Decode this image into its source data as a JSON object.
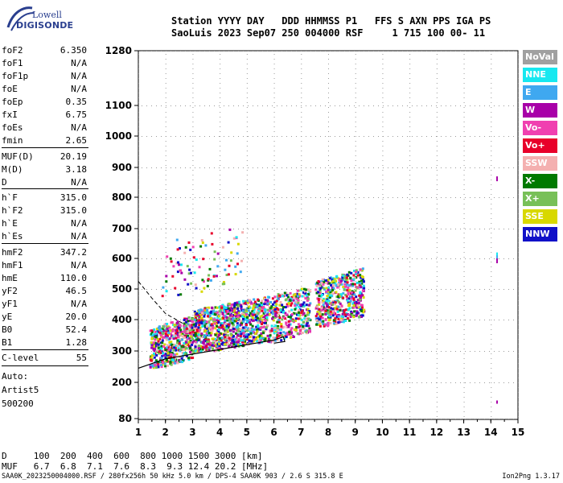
{
  "header": {
    "labels_line": "Station YYYY DAY   DDD HHMMSS P1   FFS S AXN PPS IGA PS",
    "values_line": "SaoLuis 2023 Sep07 250 004000 RSF     1 715 100 00- 11"
  },
  "logo": {
    "lowell": "Lowell",
    "digisonde": "DIGISONDE"
  },
  "params": [
    {
      "name": "foF2",
      "value": "6.350"
    },
    {
      "name": "foF1",
      "value": "N/A"
    },
    {
      "name": "foF1p",
      "value": "N/A"
    },
    {
      "name": "foE",
      "value": "N/A"
    },
    {
      "name": "foEp",
      "value": "0.35"
    },
    {
      "name": "fxI",
      "value": "6.75"
    },
    {
      "name": "foEs",
      "value": "N/A"
    },
    {
      "name": "fmin",
      "value": "2.65"
    },
    {
      "name": "MUF(D)",
      "value": "20.19"
    },
    {
      "name": "M(D)",
      "value": "3.18"
    },
    {
      "name": "D",
      "value": "N/A"
    },
    {
      "name": "h`F",
      "value": "315.0"
    },
    {
      "name": "h`F2",
      "value": "315.0"
    },
    {
      "name": "h`E",
      "value": "N/A"
    },
    {
      "name": "h`Es",
      "value": "N/A"
    },
    {
      "name": "hmF2",
      "value": "347.2"
    },
    {
      "name": "hmF1",
      "value": "N/A"
    },
    {
      "name": "hmE",
      "value": "110.0"
    },
    {
      "name": "yF2",
      "value": "46.5"
    },
    {
      "name": "yF1",
      "value": "N/A"
    },
    {
      "name": "yE",
      "value": "20.0"
    },
    {
      "name": "B0",
      "value": "52.4"
    },
    {
      "name": "B1",
      "value": "1.28"
    },
    {
      "name": "C-level",
      "value": "55"
    }
  ],
  "auto": [
    "Auto:",
    "Artist5",
    "500200"
  ],
  "legend": [
    {
      "label": "NoVal",
      "color": "#a0a0a0"
    },
    {
      "label": "NNE",
      "color": "#17e8f0"
    },
    {
      "label": "E",
      "color": "#3fa8f0"
    },
    {
      "label": "W",
      "color": "#a800a8"
    },
    {
      "label": "Vo-",
      "color": "#f040b0"
    },
    {
      "label": "Vo+",
      "color": "#e8002a"
    },
    {
      "label": "SSW",
      "color": "#f4b0b0"
    },
    {
      "label": "X-",
      "color": "#007a00"
    },
    {
      "label": "X+",
      "color": "#78c058"
    },
    {
      "label": "SSE",
      "color": "#d8d800"
    },
    {
      "label": "NNW",
      "color": "#1010c8"
    }
  ],
  "chart_data": {
    "type": "scatter",
    "xlabel": "",
    "ylabel": "",
    "x_ticks": [
      "1",
      "2",
      "3",
      "4",
      "5",
      "6",
      "7",
      "8",
      "9",
      "10",
      "11",
      "12",
      "13",
      "14",
      "15"
    ],
    "y_ticks": [
      "80",
      "200",
      "300",
      "400",
      "500",
      "600",
      "700",
      "800",
      "900",
      "1000",
      "1100",
      "1280"
    ],
    "xlim": [
      1,
      15
    ],
    "ylim": [
      80,
      1280
    ],
    "clusters": [
      {
        "name": "F-trace lower",
        "x": [
          1.4,
          3.0
        ],
        "y": [
          250,
          420
        ],
        "count": 520
      },
      {
        "name": "F-trace mid",
        "x": [
          3.0,
          5.5
        ],
        "y": [
          300,
          480
        ],
        "count": 900
      },
      {
        "name": "F-trace upper",
        "x": [
          5.5,
          7.3
        ],
        "y": [
          330,
          520
        ],
        "count": 420
      },
      {
        "name": "O/X spread",
        "x": [
          7.5,
          9.3
        ],
        "y": [
          380,
          580
        ],
        "count": 520
      },
      {
        "name": "sparse upper",
        "x": [
          1.8,
          4.8
        ],
        "y": [
          480,
          720
        ],
        "count": 90
      }
    ],
    "profile_solid": [
      [
        1,
        245
      ],
      [
        2,
        275
      ],
      [
        3,
        290
      ],
      [
        4,
        305
      ],
      [
        5,
        320
      ],
      [
        6,
        335
      ],
      [
        6.35,
        345
      ],
      [
        6.4,
        330
      ],
      [
        6,
        325
      ]
    ],
    "profile_dashed": [
      [
        1,
        525
      ],
      [
        1.5,
        470
      ],
      [
        2,
        420
      ],
      [
        2.7,
        385
      ]
    ]
  },
  "bottom_table": {
    "d_row": "D     100  200  400  600  800 1000 1500 3000 [km]",
    "muf_row": "MUF   6.7  6.8  7.1  7.6  8.3  9.3 12.4 20.2 [MHz]"
  },
  "footer": {
    "text": "SAA0K_2023250004000.RSF / 280fx256h 50 kHz 5.0 km / DPS-4 SAA0K 903 / 2.6 S 315.8 E",
    "version": "Ion2Png 1.3.17"
  }
}
